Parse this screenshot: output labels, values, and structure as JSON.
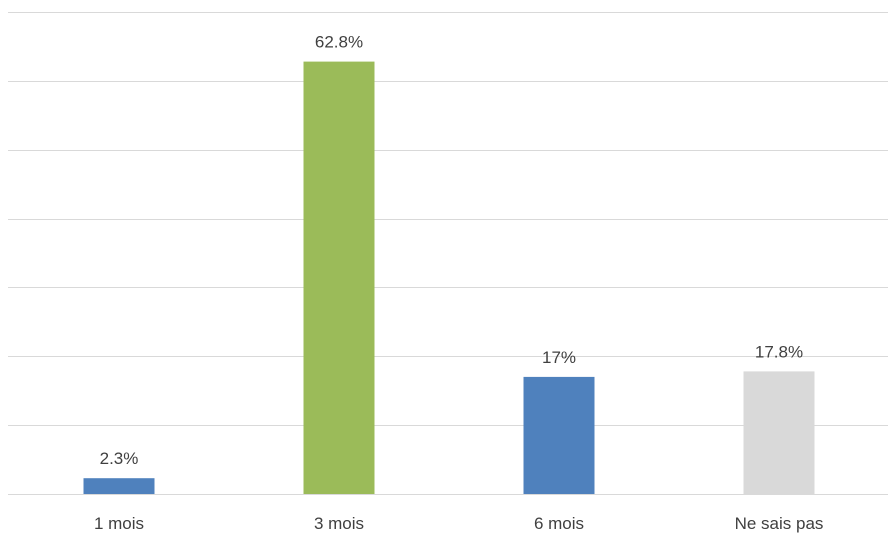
{
  "chart_data": {
    "type": "bar",
    "categories": [
      "1 mois",
      "3 mois",
      "6 mois",
      "Ne sais pas"
    ],
    "values": [
      2.3,
      62.8,
      17,
      17.8
    ],
    "data_labels": [
      "2.3%",
      "62.8%",
      "17%",
      "17.8%"
    ],
    "colors": [
      "#4f81bd",
      "#9bbb59",
      "#4f81bd",
      "#d9d9d9"
    ],
    "ylim": [
      0,
      70
    ],
    "y_ticks": [
      0,
      10,
      20,
      30,
      40,
      50,
      60,
      70
    ],
    "y_tick_labels_visible": false,
    "grid": true,
    "title": "",
    "xlabel": "",
    "ylabel": ""
  }
}
